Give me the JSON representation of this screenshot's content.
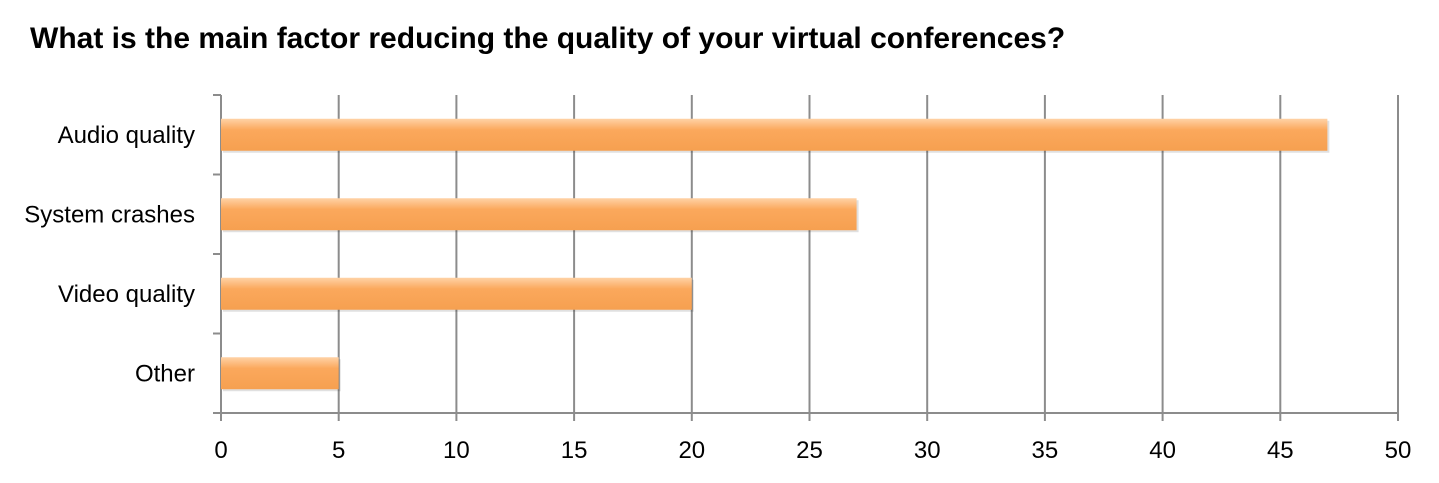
{
  "chart_data": {
    "type": "bar",
    "orientation": "horizontal",
    "title": "What is the main factor reducing the quality of your virtual conferences?",
    "xlabel": "",
    "ylabel": "",
    "categories": [
      "Audio quality",
      "System crashes",
      "Video quality",
      "Other"
    ],
    "values": [
      47,
      27,
      20,
      5
    ],
    "xlim": [
      0,
      50
    ],
    "x_ticks": [
      0,
      5,
      10,
      15,
      20,
      25,
      30,
      35,
      40,
      45,
      50
    ],
    "grid": true,
    "legend": "none",
    "bar_color": "#FBA85C",
    "bar_highlight_color": "#FFD2A6"
  }
}
